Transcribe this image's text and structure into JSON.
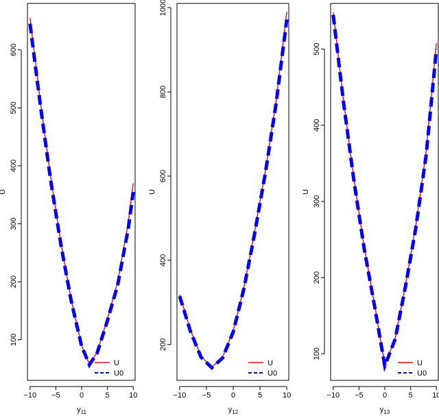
{
  "colors": {
    "u_line": "#ff0000",
    "u0_line": "#0000ff",
    "axis": "#000000",
    "background": "#ffffff"
  },
  "chart_data": [
    {
      "type": "line",
      "xlabel": "y",
      "xlabel_sub": "11",
      "ylabel": "U",
      "xlim": [
        -10.5,
        10.5
      ],
      "ylim": [
        30,
        680
      ],
      "x_ticks": [
        -10,
        -5,
        0,
        5,
        10
      ],
      "y_ticks": [
        100,
        200,
        300,
        400,
        500,
        600
      ],
      "legend": {
        "position": "bottom-right",
        "entries": [
          "U",
          "U0"
        ]
      },
      "series": [
        {
          "name": "U",
          "style": "solid",
          "x": [
            -10,
            -8,
            -6,
            -4,
            -2,
            0,
            1.5,
            3,
            5,
            7,
            9,
            10
          ],
          "y": [
            655,
            510,
            380,
            266,
            168,
            90,
            58,
            78,
            136,
            200,
            300,
            370
          ]
        },
        {
          "name": "U0",
          "style": "dashed",
          "x": [
            -10,
            -8,
            -6,
            -4,
            -2,
            0,
            1.5,
            3,
            5,
            7,
            9,
            10
          ],
          "y": [
            645,
            505,
            375,
            263,
            166,
            89,
            57,
            77,
            133,
            195,
            290,
            355
          ]
        }
      ]
    },
    {
      "type": "line",
      "xlabel": "y",
      "xlabel_sub": "12",
      "ylabel": "U",
      "xlim": [
        -10.5,
        10.5
      ],
      "ylim": [
        115,
        1010
      ],
      "x_ticks": [
        -10,
        -5,
        0,
        5,
        10
      ],
      "y_ticks": [
        200,
        400,
        600,
        800,
        1000
      ],
      "legend": {
        "position": "bottom-right",
        "entries": [
          "U",
          "U0"
        ]
      },
      "series": [
        {
          "name": "U",
          "style": "solid",
          "x": [
            -10,
            -8,
            -6,
            -4,
            -2,
            0,
            2,
            4,
            6,
            8,
            10
          ],
          "y": [
            318,
            235,
            172,
            146,
            170,
            232,
            336,
            468,
            612,
            778,
            990
          ]
        },
        {
          "name": "U0",
          "style": "dashed",
          "x": [
            -10,
            -8,
            -6,
            -4,
            -2,
            0,
            2,
            4,
            6,
            8,
            10
          ],
          "y": [
            315,
            232,
            170,
            145,
            168,
            230,
            333,
            464,
            607,
            772,
            972
          ]
        }
      ]
    },
    {
      "type": "line",
      "xlabel": "y",
      "xlabel_sub": "13",
      "ylabel": "U",
      "xlim": [
        -10.5,
        10.5
      ],
      "ylim": [
        65,
        560
      ],
      "x_ticks": [
        -10,
        -5,
        0,
        5,
        10
      ],
      "y_ticks": [
        100,
        200,
        300,
        400,
        500
      ],
      "legend": {
        "position": "bottom-right",
        "entries": [
          "U",
          "U0"
        ]
      },
      "series": [
        {
          "name": "U",
          "style": "solid",
          "x": [
            -10,
            -8,
            -6,
            -4,
            -2,
            0,
            2,
            4,
            6,
            8,
            10
          ],
          "y": [
            548,
            432,
            330,
            240,
            165,
            85,
            120,
            190,
            268,
            365,
            508
          ]
        },
        {
          "name": "U0",
          "style": "dashed",
          "x": [
            -10,
            -8,
            -6,
            -4,
            -2,
            0,
            2,
            4,
            6,
            8,
            10
          ],
          "y": [
            545,
            430,
            328,
            238,
            163,
            84,
            119,
            188,
            265,
            360,
            500
          ]
        }
      ]
    }
  ]
}
